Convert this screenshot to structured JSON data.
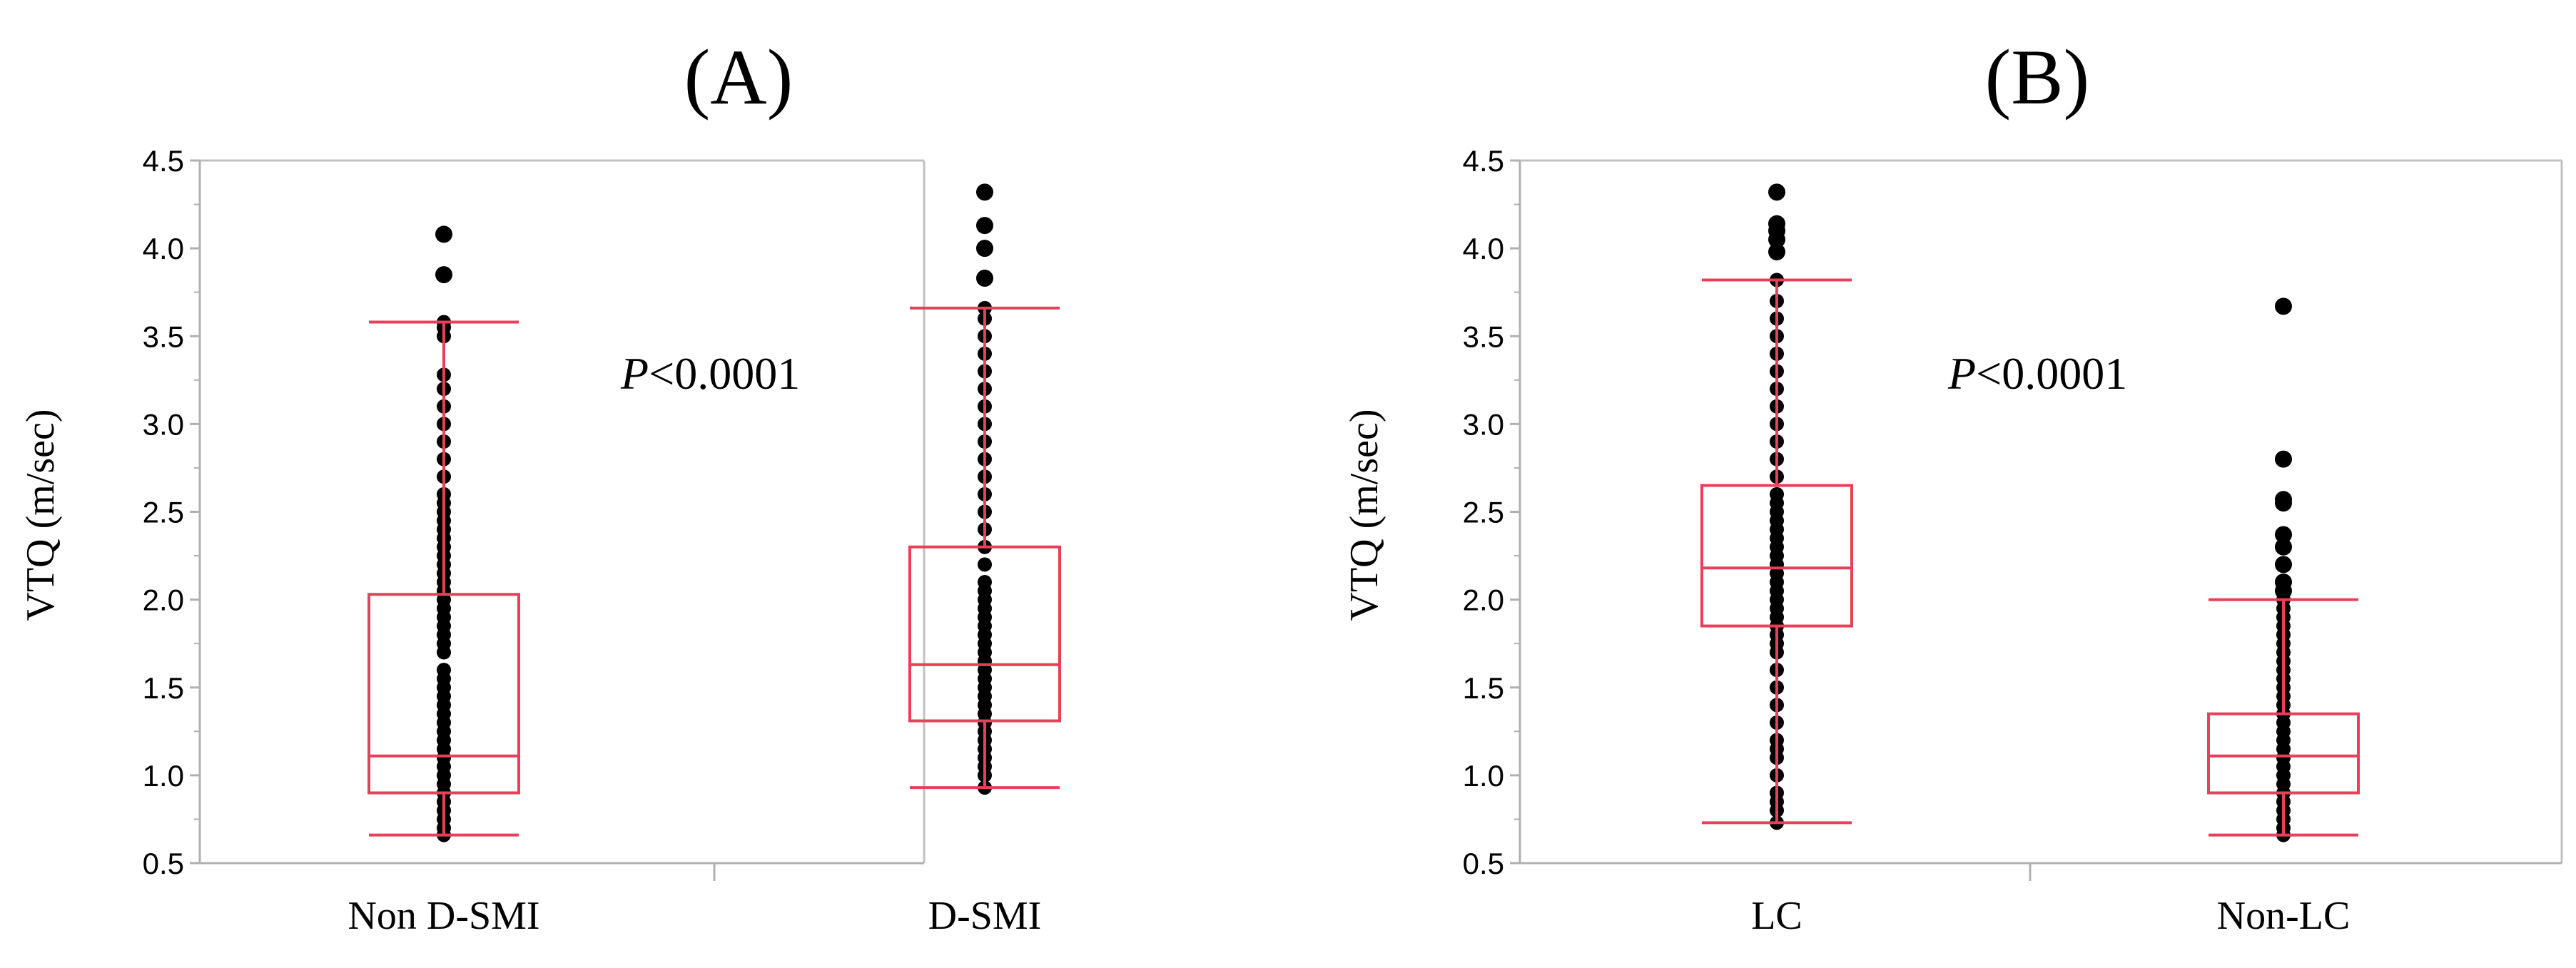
{
  "chart_data": [
    {
      "type": "box",
      "title": "(A)",
      "ylabel": "VTQ (m/sec)",
      "xlabel": "",
      "ylim": [
        0.5,
        4.5
      ],
      "yticks": [
        "0.5",
        "1.0",
        "1.5",
        "2.0",
        "2.5",
        "3.0",
        "3.5",
        "4.0",
        "4.5"
      ],
      "annotation_italic": "P",
      "annotation_rest": "<0.0001",
      "categories": [
        "Non D-SMI",
        "D-SMI"
      ],
      "boxes": [
        {
          "name": "Non D-SMI",
          "whisker_low": 0.66,
          "q1": 0.9,
          "median": 1.11,
          "q3": 2.03,
          "whisker_high": 3.58,
          "outliers": [
            3.85,
            4.08
          ],
          "points": [
            0.66,
            0.7,
            0.75,
            0.8,
            0.85,
            0.9,
            0.95,
            1.0,
            1.05,
            1.1,
            1.15,
            1.2,
            1.25,
            1.3,
            1.35,
            1.4,
            1.45,
            1.5,
            1.55,
            1.6,
            1.7,
            1.75,
            1.8,
            1.85,
            1.9,
            1.95,
            2.0,
            2.05,
            2.1,
            2.15,
            2.2,
            2.25,
            2.3,
            2.35,
            2.4,
            2.45,
            2.5,
            2.55,
            2.6,
            2.7,
            2.8,
            2.9,
            3.0,
            3.1,
            3.2,
            3.28,
            3.5,
            3.55,
            3.58,
            3.85,
            4.08
          ]
        },
        {
          "name": "D-SMI",
          "whisker_low": 0.93,
          "q1": 1.31,
          "median": 1.63,
          "q3": 2.3,
          "whisker_high": 3.66,
          "outliers": [
            3.83,
            4.0,
            4.13,
            4.32
          ],
          "points": [
            0.93,
            1.0,
            1.05,
            1.1,
            1.15,
            1.2,
            1.25,
            1.3,
            1.35,
            1.4,
            1.45,
            1.5,
            1.55,
            1.6,
            1.65,
            1.7,
            1.75,
            1.8,
            1.85,
            1.9,
            1.95,
            2.0,
            2.05,
            2.1,
            2.2,
            2.3,
            2.4,
            2.5,
            2.6,
            2.7,
            2.8,
            2.9,
            3.0,
            3.1,
            3.2,
            3.3,
            3.4,
            3.5,
            3.6,
            3.66,
            3.83,
            4.0,
            4.13,
            4.32
          ]
        }
      ]
    },
    {
      "type": "box",
      "title": "(B)",
      "ylabel": "VTQ (m/sec)",
      "xlabel": "",
      "ylim": [
        0.5,
        4.5
      ],
      "yticks": [
        "0.5",
        "1.0",
        "1.5",
        "2.0",
        "2.5",
        "3.0",
        "3.5",
        "4.0",
        "4.5"
      ],
      "annotation_italic": "P",
      "annotation_rest": "<0.0001",
      "categories": [
        "LC",
        "Non-LC"
      ],
      "boxes": [
        {
          "name": "LC",
          "whisker_low": 0.73,
          "q1": 1.85,
          "median": 2.18,
          "q3": 2.65,
          "whisker_high": 3.82,
          "outliers": [
            3.98,
            4.05,
            4.1,
            4.14,
            4.32
          ],
          "points": [
            0.73,
            0.8,
            0.85,
            0.9,
            1.0,
            1.1,
            1.15,
            1.2,
            1.3,
            1.4,
            1.5,
            1.6,
            1.7,
            1.75,
            1.8,
            1.85,
            1.9,
            1.95,
            2.0,
            2.05,
            2.1,
            2.15,
            2.2,
            2.25,
            2.3,
            2.35,
            2.4,
            2.45,
            2.5,
            2.55,
            2.6,
            2.7,
            2.8,
            2.9,
            3.0,
            3.1,
            3.2,
            3.3,
            3.4,
            3.5,
            3.6,
            3.7,
            3.82,
            3.98,
            4.05,
            4.1,
            4.14,
            4.32
          ]
        },
        {
          "name": "Non-LC",
          "whisker_low": 0.66,
          "q1": 0.9,
          "median": 1.11,
          "q3": 1.35,
          "whisker_high": 2.0,
          "outliers": [
            2.05,
            2.1,
            2.2,
            2.3,
            2.37,
            2.55,
            2.57,
            2.8,
            3.67
          ],
          "points": [
            0.66,
            0.7,
            0.75,
            0.8,
            0.85,
            0.9,
            0.95,
            1.0,
            1.05,
            1.1,
            1.15,
            1.2,
            1.25,
            1.3,
            1.35,
            1.4,
            1.45,
            1.5,
            1.55,
            1.6,
            1.65,
            1.7,
            1.75,
            1.8,
            1.85,
            1.9,
            1.95,
            2.0,
            2.05,
            2.1,
            2.2,
            2.3,
            2.37,
            2.55,
            2.57,
            2.8,
            3.67
          ]
        }
      ]
    }
  ],
  "colors": {
    "box": "#e8405a",
    "points": "#000000",
    "axis": "#b0b0b0",
    "frame": "#c0c0c0"
  }
}
